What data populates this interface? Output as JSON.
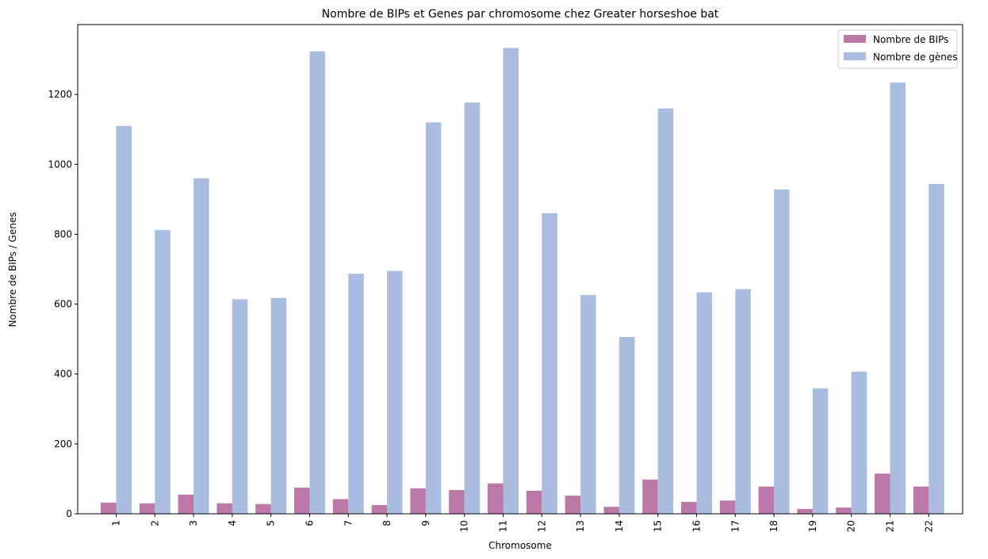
{
  "chart_data": {
    "type": "bar",
    "title": "Nombre de BIPs et Genes par chromosome chez Greater horseshoe bat",
    "xlabel": "Chromosome",
    "ylabel": "Nombre de BIPs / Genes",
    "categories": [
      "1",
      "2",
      "3",
      "4",
      "5",
      "6",
      "7",
      "8",
      "9",
      "10",
      "11",
      "12",
      "13",
      "14",
      "15",
      "16",
      "17",
      "18",
      "19",
      "20",
      "21",
      "22"
    ],
    "yticks": [
      0,
      200,
      400,
      600,
      800,
      1000,
      1200
    ],
    "ylim": [
      0,
      1400
    ],
    "grid": false,
    "legend_position": "top-right",
    "series": [
      {
        "name": "Nombre de BIPs",
        "color": "#bc79a8",
        "values": [
          32,
          30,
          55,
          30,
          28,
          75,
          42,
          25,
          73,
          68,
          87,
          66,
          52,
          20,
          98,
          34,
          38,
          78,
          14,
          18,
          115,
          78
        ]
      },
      {
        "name": "Nombre de gènes",
        "color": "#aabce0",
        "values": [
          1110,
          812,
          960,
          614,
          618,
          1323,
          687,
          695,
          1120,
          1177,
          1333,
          860,
          626,
          506,
          1160,
          634,
          643,
          928,
          359,
          407,
          1234,
          944
        ]
      }
    ]
  }
}
